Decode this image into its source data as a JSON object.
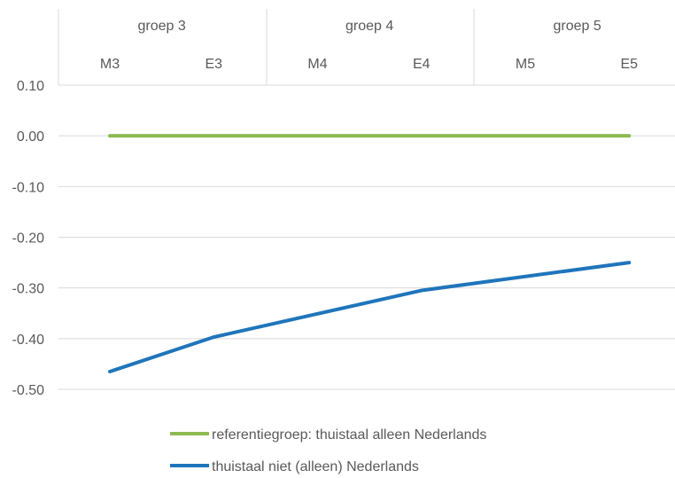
{
  "chart_data": {
    "type": "line",
    "groups": [
      {
        "label": "groep 3",
        "categories": [
          "M3",
          "E3"
        ]
      },
      {
        "label": "groep 4",
        "categories": [
          "M4",
          "E4"
        ]
      },
      {
        "label": "groep 5",
        "categories": [
          "M5",
          "E5"
        ]
      }
    ],
    "categories": [
      "M3",
      "E3",
      "M4",
      "E4",
      "M5",
      "E5"
    ],
    "ylim": [
      -0.5,
      0.1
    ],
    "yticks": [
      0.1,
      0.0,
      -0.1,
      -0.2,
      -0.3,
      -0.4,
      -0.5
    ],
    "ytick_labels": [
      "0.10",
      "0.00",
      "-0.10",
      "-0.20",
      "-0.30",
      "-0.40",
      "-0.50"
    ],
    "grid": true,
    "legend_position": "bottom",
    "series": [
      {
        "name": "referentiegroep: thuistaal alleen Nederlands",
        "color": "#8cba52",
        "points": [
          {
            "x": "M3",
            "y": 0.0
          },
          {
            "x": "E5",
            "y": 0.0
          }
        ]
      },
      {
        "name": "thuistaal niet (alleen) Nederlands",
        "color": "#1f75bb",
        "points": [
          {
            "x": "M3",
            "y": -0.465
          },
          {
            "x": "E3",
            "y": -0.397
          },
          {
            "x": "E4",
            "y": -0.305
          },
          {
            "x": "E5",
            "y": -0.25
          }
        ]
      }
    ]
  }
}
